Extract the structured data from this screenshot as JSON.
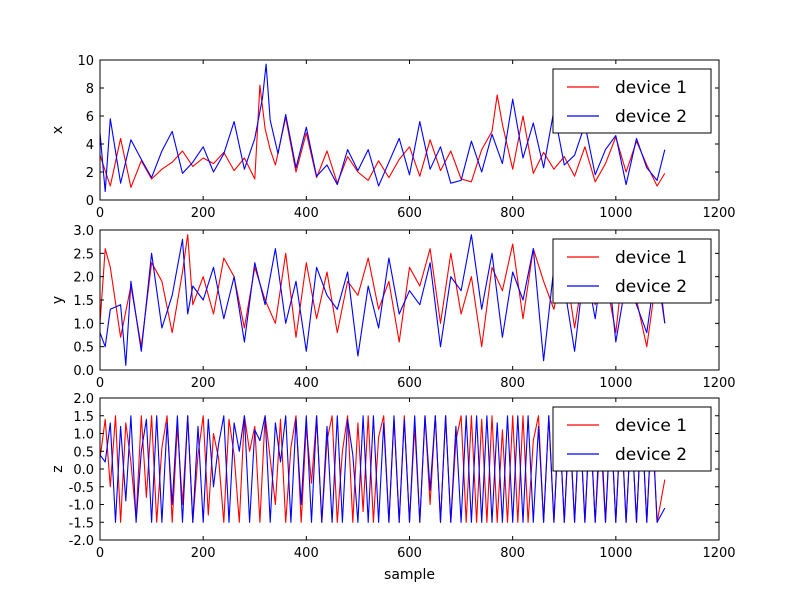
{
  "chart_data": [
    {
      "type": "line",
      "title": "",
      "xlabel": "",
      "ylabel": "x",
      "xlim": [
        0,
        1200
      ],
      "ylim": [
        0,
        10
      ],
      "xticks": [
        "0",
        "200",
        "400",
        "600",
        "800",
        "1000",
        "1200"
      ],
      "yticks": [
        "0",
        "2",
        "4",
        "6",
        "8",
        "10"
      ],
      "legend_position": "top-right",
      "series": [
        {
          "name": "device 1",
          "color": "#ff0000",
          "x": [
            0,
            20,
            40,
            60,
            80,
            100,
            120,
            140,
            160,
            180,
            200,
            220,
            240,
            260,
            280,
            300,
            310,
            320,
            330,
            340,
            360,
            380,
            400,
            420,
            440,
            460,
            480,
            500,
            520,
            540,
            560,
            580,
            600,
            620,
            640,
            660,
            680,
            700,
            720,
            740,
            760,
            770,
            780,
            800,
            820,
            840,
            860,
            880,
            900,
            920,
            940,
            960,
            980,
            1000,
            1020,
            1040,
            1060,
            1080,
            1095
          ],
          "values": [
            3.2,
            1.0,
            4.4,
            0.9,
            2.8,
            1.5,
            2.2,
            2.7,
            3.5,
            2.4,
            3.0,
            2.6,
            3.4,
            2.1,
            3.0,
            1.5,
            8.2,
            5.1,
            3.6,
            2.5,
            5.9,
            2.0,
            4.8,
            1.6,
            3.5,
            1.2,
            3.1,
            2.0,
            1.4,
            2.8,
            1.6,
            2.9,
            3.8,
            1.7,
            4.3,
            2.1,
            3.5,
            1.5,
            1.3,
            3.6,
            4.9,
            7.5,
            5.4,
            2.2,
            6.0,
            1.9,
            3.4,
            2.2,
            3.1,
            1.7,
            3.8,
            1.3,
            2.6,
            4.5,
            2.0,
            4.2,
            2.5,
            1.0,
            1.9
          ]
        },
        {
          "name": "device 2",
          "color": "#0000ff",
          "x": [
            0,
            10,
            20,
            40,
            60,
            80,
            100,
            120,
            140,
            160,
            180,
            200,
            220,
            240,
            260,
            280,
            300,
            315,
            322,
            330,
            345,
            360,
            380,
            400,
            420,
            440,
            460,
            480,
            500,
            520,
            540,
            560,
            580,
            600,
            620,
            640,
            660,
            680,
            700,
            720,
            740,
            760,
            780,
            800,
            820,
            840,
            860,
            880,
            900,
            920,
            940,
            960,
            980,
            1000,
            1020,
            1040,
            1060,
            1080,
            1095
          ],
          "values": [
            4.8,
            0.6,
            5.8,
            1.2,
            4.3,
            2.9,
            1.6,
            3.5,
            4.9,
            1.9,
            2.7,
            3.8,
            2.0,
            3.3,
            5.6,
            2.2,
            4.4,
            7.3,
            9.7,
            5.7,
            3.3,
            6.1,
            2.3,
            5.2,
            1.7,
            2.5,
            1.1,
            3.6,
            2.1,
            3.6,
            1.0,
            2.7,
            4.4,
            1.8,
            5.6,
            2.2,
            3.8,
            1.2,
            1.4,
            4.2,
            2.0,
            4.7,
            2.6,
            7.2,
            3.0,
            5.5,
            2.3,
            6.4,
            2.5,
            3.2,
            5.4,
            1.8,
            3.6,
            4.6,
            1.1,
            4.4,
            2.3,
            1.4,
            3.6
          ]
        }
      ]
    },
    {
      "type": "line",
      "title": "",
      "xlabel": "",
      "ylabel": "y",
      "xlim": [
        0,
        1200
      ],
      "ylim": [
        0,
        3
      ],
      "xticks": [
        "0",
        "200",
        "400",
        "600",
        "800",
        "1000",
        "1200"
      ],
      "yticks": [
        "0.0",
        "0.5",
        "1.0",
        "1.5",
        "2.0",
        "2.5",
        "3.0"
      ],
      "legend_position": "top-right",
      "series": [
        {
          "name": "device 1",
          "color": "#ff0000",
          "x": [
            0,
            10,
            20,
            40,
            60,
            80,
            100,
            120,
            140,
            160,
            170,
            180,
            200,
            220,
            240,
            260,
            280,
            300,
            320,
            340,
            360,
            380,
            400,
            420,
            440,
            460,
            480,
            500,
            520,
            540,
            560,
            580,
            600,
            620,
            640,
            660,
            680,
            700,
            720,
            740,
            760,
            780,
            800,
            820,
            840,
            860,
            880,
            900,
            920,
            940,
            960,
            980,
            1000,
            1020,
            1040,
            1060,
            1080,
            1095
          ],
          "values": [
            1.0,
            2.6,
            2.2,
            0.7,
            1.8,
            0.5,
            2.3,
            1.9,
            0.8,
            2.1,
            2.9,
            1.4,
            2.0,
            1.2,
            2.4,
            2.0,
            0.9,
            2.2,
            1.5,
            1.0,
            2.5,
            0.7,
            2.3,
            1.1,
            2.1,
            0.8,
            1.9,
            1.6,
            2.4,
            1.3,
            1.9,
            0.6,
            2.2,
            1.8,
            2.6,
            1.0,
            2.5,
            1.2,
            2.0,
            0.5,
            2.2,
            1.7,
            2.7,
            1.1,
            2.6,
            1.9,
            1.3,
            2.4,
            0.9,
            2.3,
            1.4,
            2.0,
            0.8,
            2.8,
            1.5,
            0.5,
            2.1,
            1.0
          ]
        },
        {
          "name": "device 2",
          "color": "#0000ff",
          "x": [
            0,
            10,
            20,
            40,
            50,
            60,
            80,
            100,
            120,
            140,
            160,
            170,
            180,
            200,
            220,
            240,
            260,
            280,
            300,
            320,
            340,
            360,
            380,
            400,
            420,
            440,
            460,
            480,
            500,
            520,
            540,
            560,
            580,
            600,
            620,
            640,
            660,
            680,
            700,
            720,
            740,
            760,
            780,
            800,
            820,
            840,
            860,
            880,
            900,
            920,
            940,
            960,
            980,
            1000,
            1020,
            1040,
            1060,
            1080,
            1095
          ],
          "values": [
            0.8,
            0.5,
            1.3,
            1.4,
            0.1,
            1.9,
            0.4,
            2.5,
            0.9,
            1.6,
            2.8,
            1.2,
            1.8,
            1.5,
            2.2,
            1.1,
            2.0,
            0.6,
            2.3,
            1.4,
            2.6,
            1.0,
            1.9,
            0.4,
            2.2,
            1.6,
            1.3,
            2.1,
            0.3,
            1.8,
            0.9,
            2.4,
            1.2,
            1.7,
            1.4,
            2.3,
            0.5,
            2.0,
            1.7,
            2.9,
            1.3,
            2.5,
            0.7,
            2.1,
            1.5,
            2.6,
            0.2,
            2.2,
            1.8,
            0.4,
            2.3,
            1.1,
            2.8,
            0.6,
            1.9,
            1.4,
            0.8,
            2.4,
            1.0
          ]
        }
      ]
    },
    {
      "type": "line",
      "title": "",
      "xlabel": "sample",
      "ylabel": "z",
      "xlim": [
        0,
        1200
      ],
      "ylim": [
        -2.0,
        2.0
      ],
      "xticks": [
        "0",
        "200",
        "400",
        "600",
        "800",
        "1000",
        "1200"
      ],
      "yticks": [
        "-2.0",
        "-1.5",
        "-1.0",
        "-0.5",
        "0.0",
        "0.5",
        "1.0",
        "1.5",
        "2.0"
      ],
      "legend_position": "top-right",
      "series": [
        {
          "name": "device 1",
          "color": "#ff0000",
          "x": [
            0,
            10,
            20,
            30,
            40,
            50,
            60,
            70,
            80,
            90,
            100,
            110,
            120,
            130,
            140,
            150,
            160,
            170,
            180,
            190,
            200,
            210,
            220,
            230,
            240,
            250,
            260,
            270,
            280,
            290,
            300,
            310,
            320,
            330,
            340,
            350,
            360,
            370,
            380,
            390,
            400,
            410,
            420,
            430,
            440,
            450,
            460,
            470,
            480,
            490,
            500,
            510,
            520,
            530,
            540,
            550,
            560,
            570,
            580,
            590,
            600,
            610,
            620,
            630,
            640,
            650,
            660,
            670,
            680,
            690,
            700,
            710,
            720,
            730,
            740,
            750,
            760,
            770,
            780,
            790,
            800,
            810,
            820,
            830,
            840,
            850,
            860,
            870,
            880,
            890,
            900,
            910,
            920,
            930,
            940,
            950,
            960,
            970,
            980,
            990,
            1000,
            1010,
            1020,
            1030,
            1040,
            1050,
            1060,
            1070,
            1080,
            1095
          ],
          "values": [
            0.3,
            1.4,
            -0.5,
            1.5,
            -1.5,
            1.3,
            0.2,
            -1.4,
            1.5,
            -0.8,
            1.5,
            -1.5,
            0.6,
            1.5,
            -1.5,
            1.2,
            -1.0,
            1.5,
            -1.5,
            0.4,
            1.5,
            -1.3,
            1.0,
            0.3,
            -1.5,
            1.4,
            0.4,
            -1.5,
            1.5,
            0.5,
            1.2,
            -1.5,
            1.5,
            0.3,
            -1.0,
            1.4,
            -1.5,
            0.6,
            1.5,
            -1.5,
            1.2,
            -0.4,
            1.5,
            -1.5,
            0.8,
            1.5,
            -1.5,
            0.5,
            1.5,
            -1.5,
            1.3,
            -1.2,
            1.5,
            -1.5,
            0.9,
            1.5,
            -1.5,
            1.4,
            -1.5,
            1.5,
            -1.5,
            1.2,
            -1.5,
            1.5,
            -1.0,
            1.5,
            -1.5,
            1.5,
            -1.5,
            0.8,
            1.5,
            -1.5,
            1.5,
            -1.5,
            1.4,
            -1.5,
            1.5,
            -1.5,
            1.1,
            -1.5,
            1.5,
            -1.5,
            1.5,
            -1.5,
            0.8,
            1.5,
            -1.5,
            1.5,
            -1.5,
            1.5,
            -1.5,
            1.3,
            -1.5,
            1.5,
            -1.5,
            1.5,
            -1.5,
            1.0,
            -1.5,
            1.5,
            -1.5,
            1.5,
            -1.5,
            1.4,
            -1.5,
            1.5,
            -1.5,
            1.5,
            -1.5,
            -0.3
          ]
        },
        {
          "name": "device 2",
          "color": "#0000ff",
          "x": [
            0,
            10,
            20,
            30,
            40,
            50,
            60,
            70,
            80,
            90,
            100,
            110,
            120,
            130,
            140,
            150,
            160,
            170,
            180,
            190,
            200,
            210,
            220,
            230,
            240,
            250,
            260,
            270,
            280,
            290,
            300,
            310,
            320,
            330,
            340,
            350,
            360,
            370,
            380,
            390,
            400,
            410,
            420,
            430,
            440,
            450,
            460,
            470,
            480,
            490,
            500,
            510,
            520,
            530,
            540,
            550,
            560,
            570,
            580,
            590,
            600,
            610,
            620,
            630,
            640,
            650,
            660,
            670,
            680,
            690,
            700,
            710,
            720,
            730,
            740,
            750,
            760,
            770,
            780,
            790,
            800,
            810,
            820,
            830,
            840,
            850,
            860,
            870,
            880,
            890,
            900,
            910,
            920,
            930,
            940,
            950,
            960,
            970,
            980,
            990,
            1000,
            1010,
            1020,
            1030,
            1040,
            1050,
            1060,
            1070,
            1080,
            1095
          ],
          "values": [
            0.4,
            0.2,
            1.3,
            -1.5,
            1.2,
            -0.9,
            1.5,
            -1.5,
            0.5,
            1.4,
            -1.5,
            1.5,
            -1.5,
            1.3,
            -1.0,
            1.5,
            -1.5,
            1.5,
            -1.5,
            1.2,
            -1.5,
            1.4,
            -0.5,
            0.7,
            1.5,
            -1.5,
            1.3,
            0.5,
            1.5,
            -1.5,
            1.1,
            0.8,
            1.5,
            -1.5,
            1.3,
            0.2,
            1.5,
            -1.5,
            1.4,
            -1.0,
            1.5,
            -1.5,
            1.5,
            -1.5,
            1.2,
            -1.5,
            1.5,
            -1.5,
            1.4,
            0.4,
            -1.5,
            1.5,
            -1.5,
            1.5,
            -1.5,
            1.3,
            -1.5,
            1.5,
            -1.5,
            1.4,
            -1.5,
            1.5,
            -1.5,
            1.5,
            -0.6,
            1.5,
            -1.5,
            1.5,
            -1.5,
            1.2,
            -1.5,
            1.5,
            -1.5,
            1.5,
            -1.5,
            1.5,
            -1.5,
            1.3,
            -1.5,
            1.5,
            -1.5,
            1.5,
            -1.5,
            1.5,
            -1.5,
            1.2,
            -1.5,
            1.5,
            -1.5,
            1.5,
            -1.5,
            1.5,
            -1.5,
            1.5,
            -1.5,
            1.4,
            -1.5,
            1.5,
            -1.5,
            1.5,
            -1.5,
            1.5,
            -1.5,
            1.3,
            -1.5,
            1.5,
            -1.5,
            1.5,
            -1.5,
            -1.1
          ]
        }
      ]
    }
  ]
}
